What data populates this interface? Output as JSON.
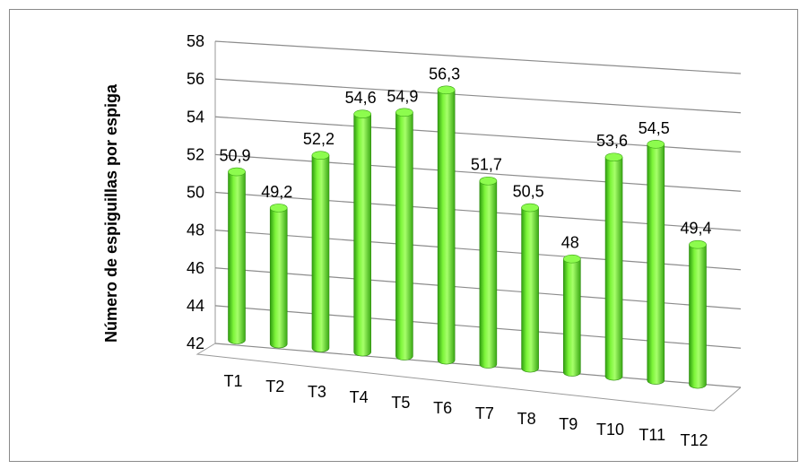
{
  "chart_data": {
    "type": "bar",
    "title": "",
    "xlabel": "",
    "ylabel": "Número de espiguillas por espiga",
    "categories": [
      "T1",
      "T2",
      "T3",
      "T4",
      "T5",
      "T6",
      "T7",
      "T8",
      "T9",
      "T10",
      "T11",
      "T12"
    ],
    "values": [
      50.9,
      49.2,
      52.2,
      54.6,
      54.9,
      56.3,
      51.7,
      50.5,
      48,
      53.6,
      54.5,
      49.4
    ],
    "data_labels": [
      "50,9",
      "49,2",
      "52,2",
      "54,6",
      "54,9",
      "56,3",
      "51,7",
      "50,5",
      "48",
      "53,6",
      "54,5",
      "49,4"
    ],
    "ylim": [
      42,
      58
    ],
    "yticks": [
      "42",
      "44",
      "46",
      "48",
      "50",
      "52",
      "54",
      "56",
      "58"
    ],
    "grid": true,
    "legend": "none",
    "bar_color": "#66ee22",
    "bar_shape": "cylinder-3d"
  }
}
